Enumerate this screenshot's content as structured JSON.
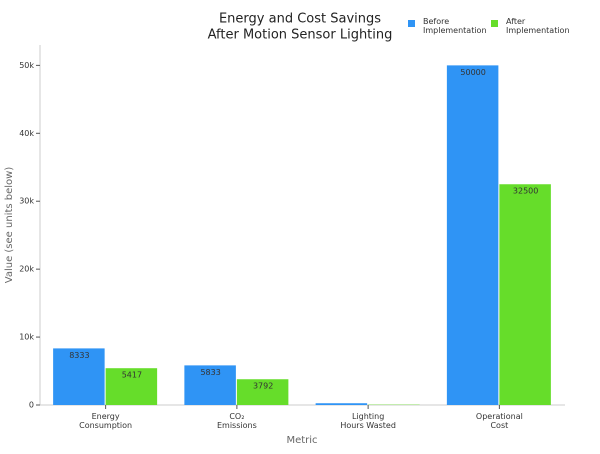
{
  "chart_data": {
    "type": "bar",
    "title": [
      "Energy and Cost Savings",
      "After Motion Sensor Lighting"
    ],
    "x_label": "Metric",
    "y_label": "Value (see units below)",
    "categories": [
      "Energy\nConsumption",
      "CO₂\nEmissions",
      "Lighting\nHours Wasted",
      "Operational\nCost"
    ],
    "series": [
      {
        "name": "Before\nImplementation",
        "color": "#2f94f5",
        "values": [
          8333,
          5833,
          260,
          50000
        ],
        "labels_shown": [
          true,
          true,
          false,
          true
        ]
      },
      {
        "name": "After\nImplementation",
        "color": "#66dd2a",
        "values": [
          5417,
          3792,
          50,
          32500
        ],
        "labels_shown": [
          true,
          true,
          false,
          true
        ]
      }
    ],
    "ylim": [
      0,
      53000
    ],
    "yticks": [
      0,
      {
        "value": 10000,
        "label": "10k"
      },
      {
        "value": 20000,
        "label": "20k"
      },
      {
        "value": 30000,
        "label": "30k"
      },
      {
        "value": 40000,
        "label": "40k"
      },
      {
        "value": 50000,
        "label": "50k"
      }
    ],
    "grid": false,
    "legend": "top-right"
  }
}
